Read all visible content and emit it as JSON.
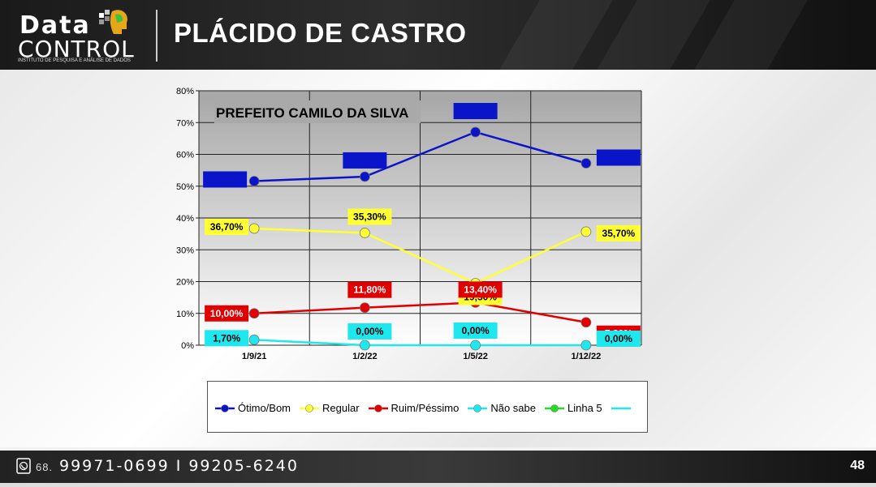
{
  "header": {
    "logo_word1": "Data",
    "logo_word2": "CONTROL",
    "logo_tagline": "INSTITUTO DE PESQUISA E ANÁLISE DE DADOS",
    "title": "PLÁCIDO DE CASTRO"
  },
  "footer": {
    "phone_prefix": "68.",
    "phones": "99971-0699 I 99205-6240",
    "page_number": "48"
  },
  "colors": {
    "otimo": "#0a14c8",
    "regular": "#ffff33",
    "ruim": "#e00000",
    "nao_sabe": "#1ee8ee",
    "linha5": "#22dd22"
  },
  "chart_data": {
    "type": "line",
    "title": "PREFEITO CAMILO DA SILVA",
    "categories": [
      "1/9/21",
      "1/2/22",
      "1/5/22",
      "1/12/22"
    ],
    "ylim": [
      0,
      80
    ],
    "y_ticks": [
      "0%",
      "10%",
      "20%",
      "30%",
      "40%",
      "50%",
      "60%",
      "70%",
      "80%"
    ],
    "grid": true,
    "legend_position": "bottom",
    "series": [
      {
        "name": "Ótimo/Bom",
        "color": "#0a14c8",
        "values": [
          51.6,
          53.0,
          67.0,
          57.2
        ],
        "labels": [
          "51,60%",
          "53,00%",
          "67,00%",
          "57,20%"
        ],
        "label_text_color": "#0a14c8"
      },
      {
        "name": "Regular",
        "color": "#ffff33",
        "values": [
          36.7,
          35.3,
          19.5,
          35.7
        ],
        "labels": [
          "36,70%",
          "35,30%",
          "19,50%",
          "35,70%"
        ],
        "label_text_color": "#000000"
      },
      {
        "name": "Ruim/Péssimo",
        "color": "#e00000",
        "values": [
          10.0,
          11.8,
          13.4,
          7.2
        ],
        "labels": [
          "10,00%",
          "11,80%",
          "13,40%",
          "7,20%"
        ],
        "label_text_color": "#ffffff"
      },
      {
        "name": "Não sabe",
        "color": "#1ee8ee",
        "values": [
          1.7,
          0.0,
          0.0,
          0.0
        ],
        "labels": [
          "1,70%",
          "0,00%",
          "0,00%",
          "0,00%"
        ],
        "label_text_color": "#000000"
      }
    ],
    "legend": [
      {
        "name": "Ótimo/Bom",
        "color": "#0a14c8",
        "marker": true
      },
      {
        "name": "Regular",
        "color": "#ffff33",
        "marker": true
      },
      {
        "name": "Ruim/Péssimo",
        "color": "#e00000",
        "marker": true
      },
      {
        "name": "Não sabe",
        "color": "#1ee8ee",
        "marker": true
      },
      {
        "name": "Linha 5",
        "color": "#22dd22",
        "marker": true
      },
      {
        "name": "",
        "color": "#1ee8ee",
        "marker": false
      }
    ]
  }
}
